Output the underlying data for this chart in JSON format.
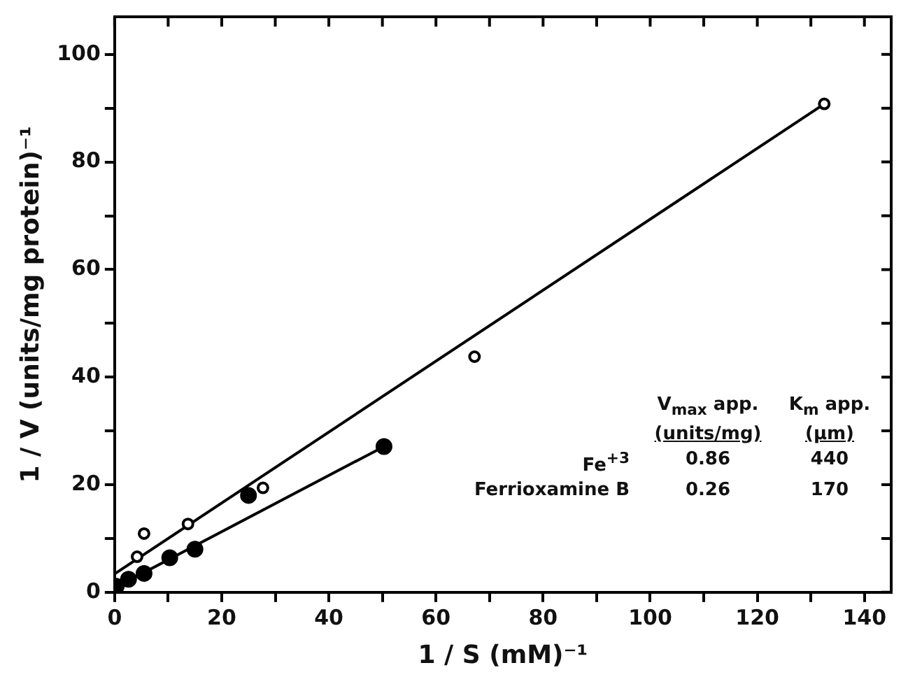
{
  "chart_data": {
    "type": "scatter",
    "xlabel": "1 / S (mM)⁻¹",
    "ylabel": "1 / V (units/mg protein)⁻¹",
    "xlim": [
      0,
      145
    ],
    "ylim": [
      0,
      107
    ],
    "xticks": [
      0,
      {
        "value": 10,
        "label": null
      },
      20,
      {
        "value": 30,
        "label": null
      },
      40,
      {
        "value": 50,
        "label": null
      },
      60,
      {
        "value": 70,
        "label": null
      },
      80,
      {
        "value": 90,
        "label": null
      },
      100,
      {
        "value": 110,
        "label": null
      },
      120,
      {
        "value": 130,
        "label": null
      },
      140
    ],
    "yticks": [
      0,
      {
        "value": 10,
        "label": null
      },
      20,
      {
        "value": 30,
        "label": null
      },
      40,
      {
        "value": 50,
        "label": null
      },
      60,
      {
        "value": 70,
        "label": null
      },
      80,
      {
        "value": 90,
        "label": null
      },
      100
    ],
    "grid": false,
    "legend": false,
    "marker": "circle",
    "series": [
      {
        "color": "#000000",
        "x": [
          4.2,
          5.5,
          13.7,
          27.7,
          67.2,
          132.5
        ],
        "values": [
          6.6,
          10.9,
          12.7,
          19.4,
          43.8,
          90.8
        ]
      },
      {
        "color": "#000000",
        "x": [
          0.3,
          2.6,
          5.5,
          10.3,
          15,
          25,
          50.3
        ],
        "values": [
          1.1,
          2.4,
          3.5,
          6.4,
          8,
          18,
          27.1
        ]
      },
      {
        "type": "line",
        "color": "#000000",
        "marker": "none",
        "x": [
          0,
          132.5
        ],
        "values": [
          3.4,
          90.8
        ]
      },
      {
        "type": "line",
        "color": "#000000",
        "marker": "none",
        "x": [
          0,
          50.3
        ],
        "values": [
          0.8,
          27.1
        ]
      }
    ],
    "annotations": [
      "V$_{max}$ app.",
      "K$_{m}$ app.",
      "(units/mg)",
      "(μm)",
      "Fe$^{+3}$",
      "0.86",
      "440",
      "Ferrioxamine B",
      "0.26",
      "170"
    ]
  }
}
